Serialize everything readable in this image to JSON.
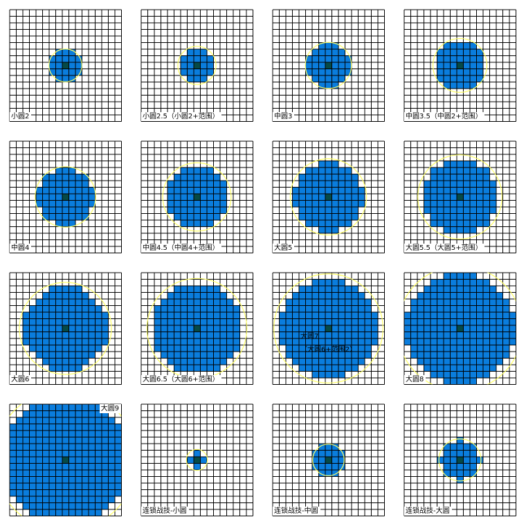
{
  "colors": {
    "fill": "#0a7ddd",
    "center": "#064a46",
    "circle": "#ffff66",
    "grid": "#000000",
    "background": "#ffffff"
  },
  "panels": [
    {
      "label": "小圆2",
      "radius": 2.4,
      "circle_r": 2.5
    },
    {
      "label": "小圆2.5（小圆2+范围）",
      "radius": 2.6,
      "circle_r": 2.9
    },
    {
      "label": "中圆3",
      "radius": 3.3,
      "circle_r": 3.5
    },
    {
      "label": "中圆3.5（中圆2+范围）",
      "radius": 3.8,
      "circle_r": 4.1
    },
    {
      "label": "中圆4",
      "radius": 4.3,
      "circle_r": 4.6
    },
    {
      "label": "中圆4.5（中圆4+范围）",
      "radius": 4.6,
      "circle_r": 5.2
    },
    {
      "label": "大圆5",
      "radius": 5.3,
      "circle_r": 5.8
    },
    {
      "label": "大圆5.5（大圆5+范围）",
      "radius": 5.8,
      "circle_r": 6.4
    },
    {
      "label": "大圆6",
      "radius": 6.4,
      "circle_r": 7.0
    },
    {
      "label": "大圆6.5（大圆6+范围）",
      "radius": 6.9,
      "circle_r": 7.6
    },
    {
      "label": "大圆7",
      "label2": "（大圆6+范围2）",
      "radius": 7.6,
      "circle_r": 8.3
    },
    {
      "label": "大圆8",
      "radius": 8.4,
      "circle_r": 9.5
    },
    {
      "label": "大圆9",
      "radius": 9.5,
      "circle_r": 10.8
    },
    {
      "label": "连锁战技-小圆",
      "radius": 1.3,
      "circle_r": 1.6
    },
    {
      "label": "连锁战技-中圆",
      "radius": 2.3,
      "circle_r": 2.4
    },
    {
      "label": "连锁战技-大圆",
      "radius": 3.1,
      "circle_r": 3.2
    }
  ]
}
